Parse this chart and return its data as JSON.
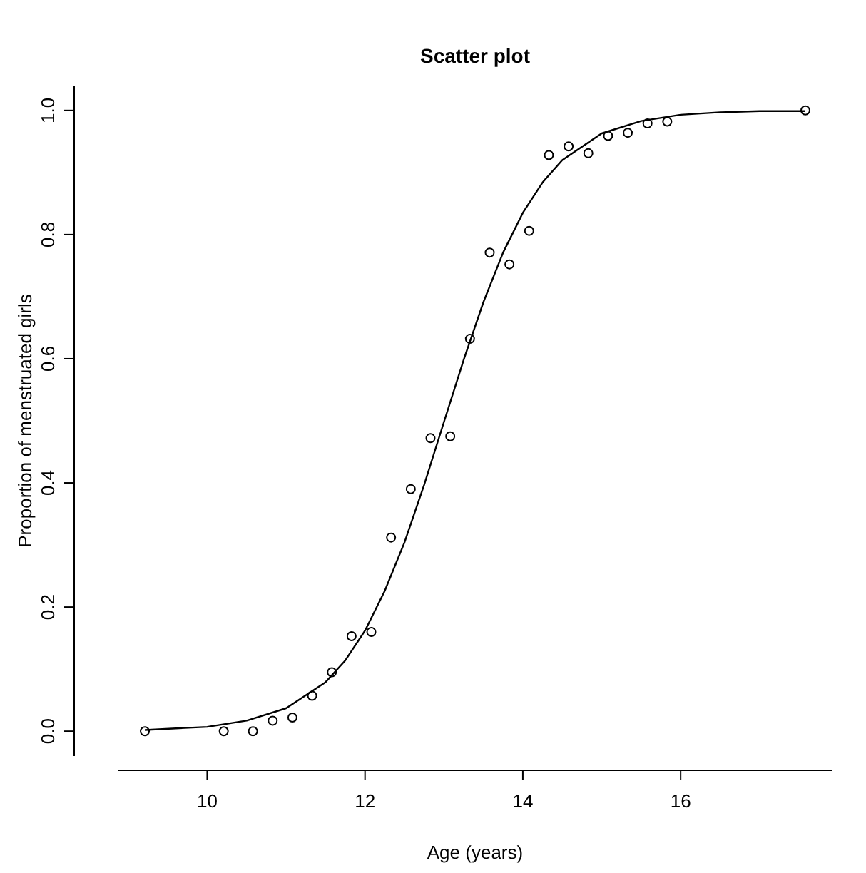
{
  "chart_data": {
    "type": "scatter",
    "title": "Scatter plot",
    "xlabel": "Age (years)",
    "ylabel": "Proportion of menstruated girls",
    "xlim": [
      8.875,
      17.915
    ],
    "xticks": [
      10,
      12,
      14,
      16
    ],
    "ylim": [
      -0.04,
      1.04
    ],
    "yticks": [
      {
        "value": 0,
        "label": "0.0"
      },
      {
        "value": 0.2,
        "label": "0.2"
      },
      {
        "value": 0.4,
        "label": "0.4"
      },
      {
        "value": 0.6,
        "label": "0.6"
      },
      {
        "value": 0.8,
        "label": "0.8"
      },
      {
        "value": 1,
        "label": "1.0"
      }
    ],
    "grid": false,
    "marker": "circle",
    "series": [
      {
        "color": "#000000",
        "x": [
          9.21,
          10.21,
          10.58,
          10.83,
          11.08,
          11.33,
          11.58,
          11.83,
          12.08,
          12.33,
          12.58,
          12.83,
          13.08,
          13.33,
          13.58,
          13.83,
          14.08,
          14.33,
          14.58,
          14.83,
          15.08,
          15.33,
          15.58,
          15.83,
          17.58
        ],
        "values": [
          0,
          0,
          0,
          0.017,
          0.022,
          0.057,
          0.095,
          0.153,
          0.16,
          0.312,
          0.39,
          0.472,
          0.475,
          0.632,
          0.771,
          0.752,
          0.806,
          0.928,
          0.942,
          0.931,
          0.959,
          0.964,
          0.979,
          0.982,
          1
        ]
      },
      {
        "type": "line",
        "color": "#000000",
        "marker": "none",
        "line_style": "solid",
        "x": [
          9.21,
          10,
          10.5,
          11,
          11.5,
          11.75,
          12,
          12.25,
          12.5,
          12.75,
          13,
          13.25,
          13.5,
          13.75,
          14,
          14.25,
          14.5,
          15,
          15.5,
          16,
          16.5,
          17,
          17.58
        ],
        "values": [
          0.002,
          0.007,
          0.017,
          0.037,
          0.079,
          0.114,
          0.162,
          0.226,
          0.304,
          0.397,
          0.498,
          0.598,
          0.691,
          0.771,
          0.835,
          0.884,
          0.92,
          0.963,
          0.983,
          0.993,
          0.997,
          0.999,
          0.999
        ]
      }
    ]
  }
}
